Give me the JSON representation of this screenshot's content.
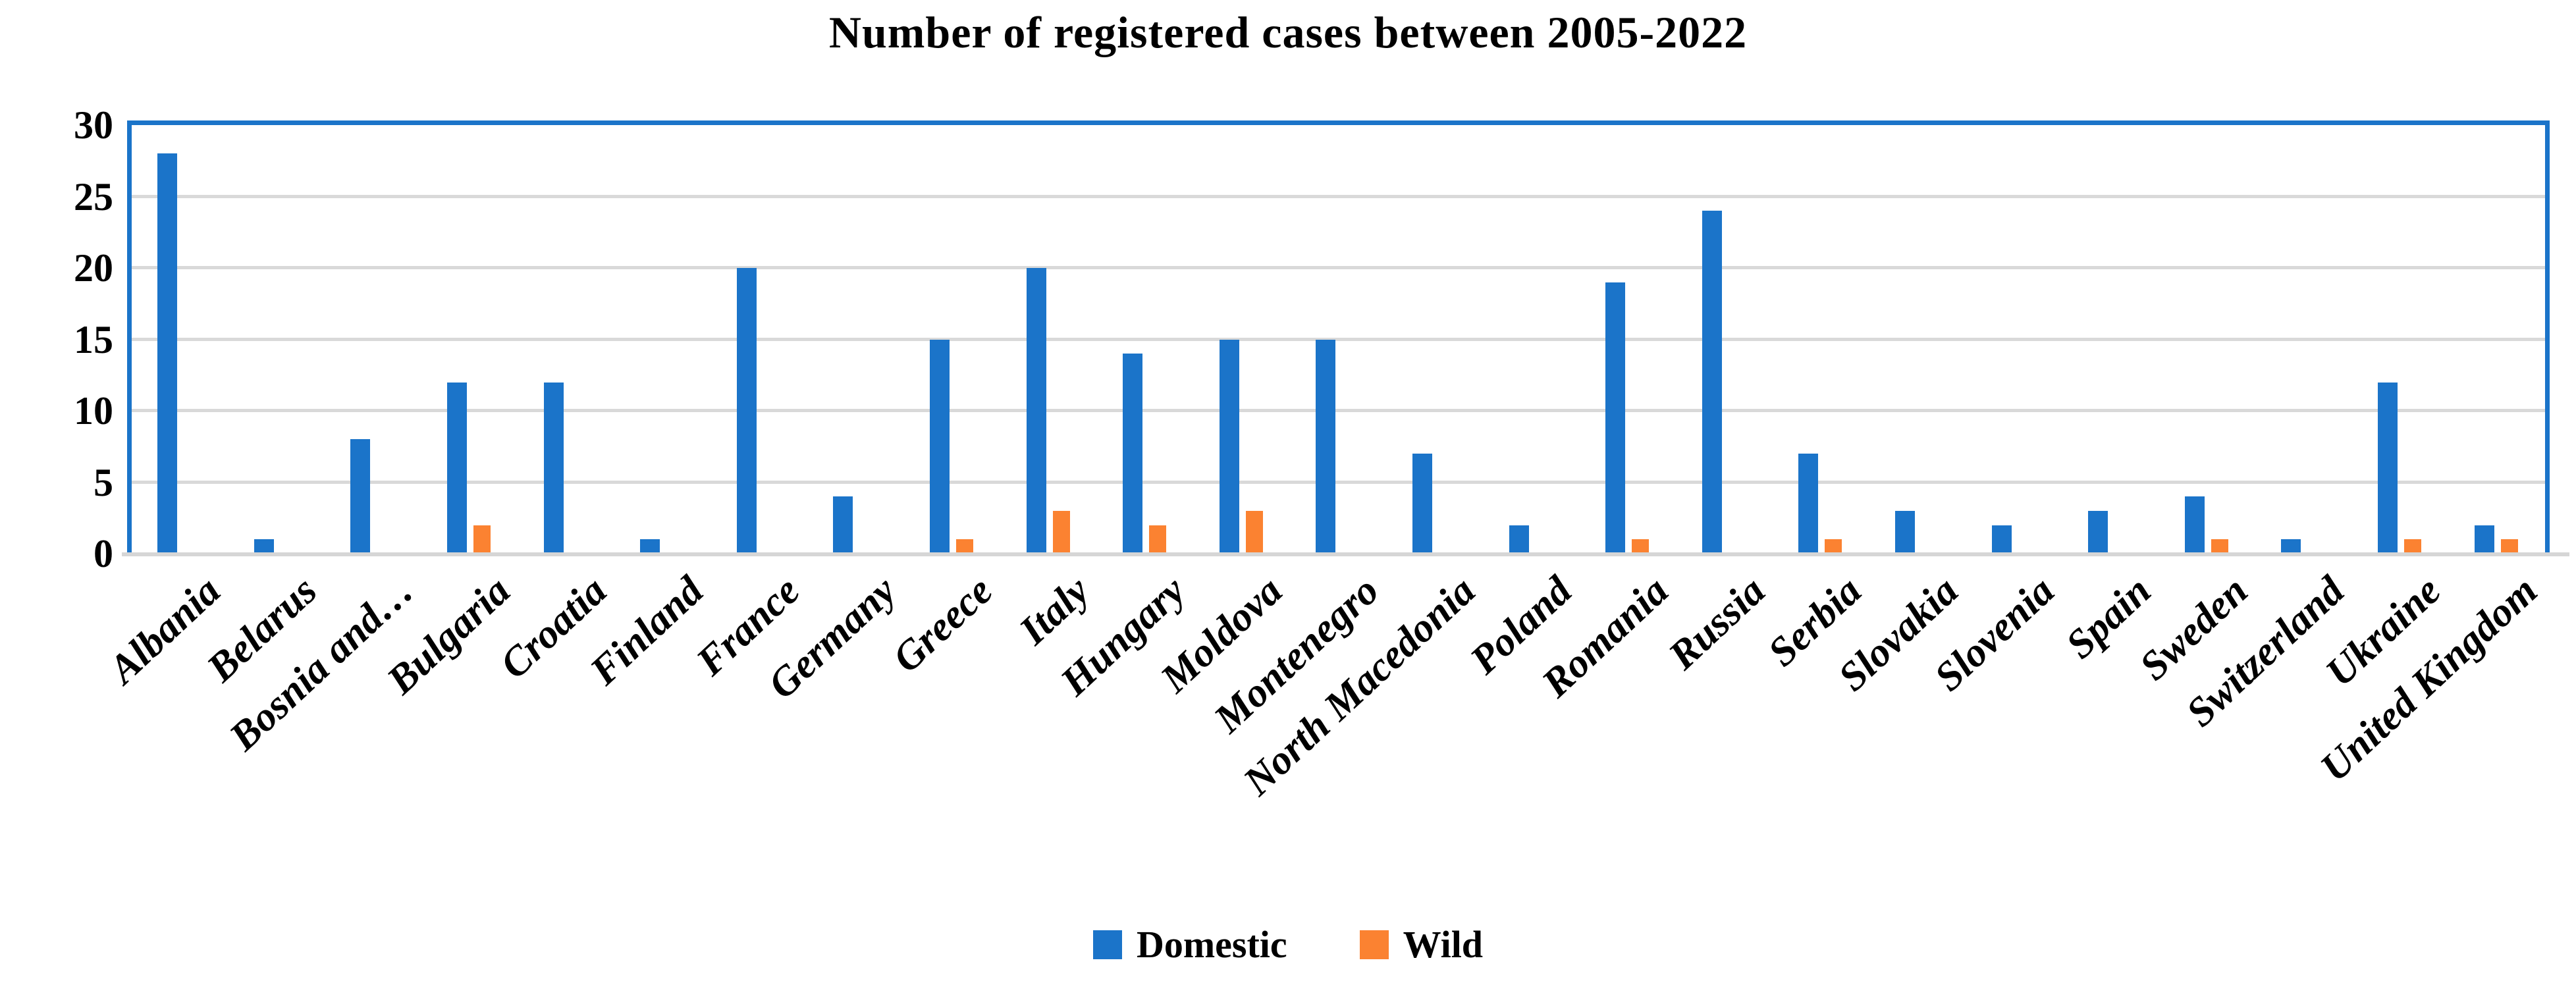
{
  "title": "Number of registered cases between 2005-2022",
  "legend": {
    "items": [
      {
        "label": "Domestic",
        "color": "#1B74C9"
      },
      {
        "label": "Wild",
        "color": "#FB8231"
      }
    ]
  },
  "y_axis": {
    "tick_labels": [
      "0",
      "5",
      "10",
      "15",
      "20",
      "25",
      "30"
    ],
    "min": 0,
    "max": 30,
    "tick_step": 5
  },
  "colors": {
    "domestic": "#1B74C9",
    "wild": "#FB8231",
    "gridline": "#D9D9D9",
    "axis_line": "#D6D6D6",
    "plot_border": "#1B74C9",
    "text": "#000000"
  },
  "chart_data": {
    "type": "bar",
    "title": "Number of registered cases between 2005-2022",
    "categories": [
      "Albania",
      "Belarus",
      "Bosnia and…",
      "Bulgaria",
      "Croatia",
      "Finland",
      "France",
      "Germany",
      "Greece",
      "Italy",
      "Hungary",
      "Moldova",
      "Montenegro",
      "North Macedonia",
      "Poland",
      "Romania",
      "Russia",
      "Serbia",
      "Slovakia",
      "Slovenia",
      "Spain",
      "Sweden",
      "Switzerland",
      "Ukraine",
      "United Kingdom"
    ],
    "series": [
      {
        "name": "Domestic",
        "color": "#1B74C9",
        "values": [
          28,
          1,
          8,
          12,
          12,
          1,
          20,
          4,
          15,
          20,
          14,
          15,
          15,
          7,
          2,
          19,
          24,
          7,
          3,
          2,
          3,
          4,
          1,
          12,
          2
        ]
      },
      {
        "name": "Wild",
        "color": "#FB8231",
        "values": [
          0,
          0,
          0,
          2,
          0,
          0,
          0,
          0,
          1,
          3,
          2,
          3,
          0,
          0,
          0,
          1,
          0,
          1,
          0,
          0,
          0,
          1,
          0,
          1,
          1
        ]
      }
    ],
    "xlabel": "",
    "ylabel": "",
    "ylim": [
      0,
      30
    ],
    "grid": true,
    "legend_position": "bottom"
  }
}
